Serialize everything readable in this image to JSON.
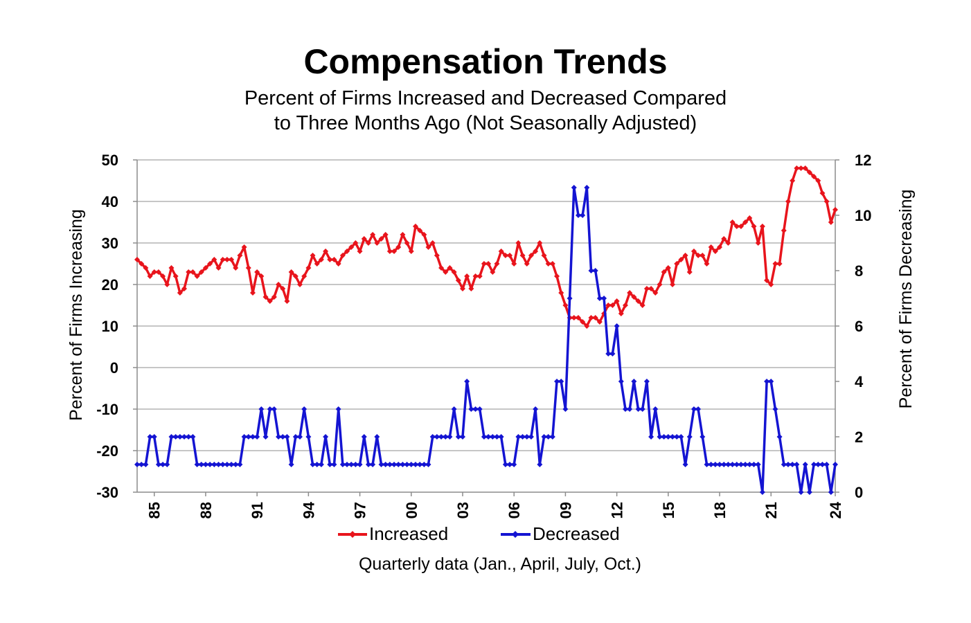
{
  "chart_data": {
    "type": "line",
    "title": "Compensation Trends",
    "subtitle_lines": [
      "Percent of Firms Increased and Decreased Compared",
      "to Three Months Ago (Not Seasonally Adjusted)"
    ],
    "xlabel": "Quarterly data (Jan., April, July, Oct.)",
    "ylabel_left": "Percent of Firms Increasing",
    "ylabel_right": "Percent of Firms Decreasing",
    "x_start": "1984 Q1",
    "x_end": "2024 Q1",
    "x_tick_labels": [
      "85",
      "88",
      "91",
      "94",
      "97",
      "00",
      "03",
      "06",
      "09",
      "12",
      "15",
      "18",
      "21",
      "24"
    ],
    "ylim_left": [
      -30,
      50
    ],
    "yticks_left": [
      50,
      40,
      30,
      20,
      10,
      0,
      -10,
      -20,
      -30
    ],
    "ylim_right": [
      0,
      12
    ],
    "yticks_right": [
      12,
      10,
      8,
      6,
      4,
      2,
      0
    ],
    "grid": true,
    "legend_position": "bottom",
    "series": [
      {
        "name": "Increased",
        "axis": "left",
        "color": "#e8141c",
        "values": [
          26,
          25,
          24,
          22,
          23,
          23,
          22,
          20,
          24,
          22,
          18,
          19,
          23,
          23,
          22,
          23,
          24,
          25,
          26,
          24,
          26,
          26,
          26,
          24,
          27,
          29,
          24,
          18,
          23,
          22,
          17,
          16,
          17,
          20,
          19,
          16,
          23,
          22,
          20,
          22,
          24,
          27,
          25,
          26,
          28,
          26,
          26,
          25,
          27,
          28,
          29,
          30,
          28,
          31,
          30,
          32,
          30,
          31,
          32,
          28,
          28,
          29,
          32,
          30,
          28,
          34,
          33,
          32,
          29,
          30,
          27,
          24,
          23,
          24,
          23,
          21,
          19,
          22,
          19,
          22,
          22,
          25,
          25,
          23,
          25,
          28,
          27,
          27,
          25,
          30,
          27,
          25,
          27,
          28,
          30,
          27,
          25,
          25,
          22,
          18,
          15,
          12,
          12,
          12,
          11,
          10,
          12,
          12,
          11,
          13,
          15,
          15,
          16,
          13,
          15,
          18,
          17,
          16,
          15,
          19,
          19,
          18,
          20,
          23,
          24,
          20,
          25,
          26,
          27,
          23,
          28,
          27,
          27,
          25,
          29,
          28,
          29,
          31,
          30,
          35,
          34,
          34,
          35,
          36,
          34,
          30,
          34,
          21,
          20,
          25,
          25,
          33,
          40,
          45,
          48,
          48,
          48,
          47,
          46,
          45,
          42,
          40,
          35,
          38
        ]
      },
      {
        "name": "Decreased",
        "axis": "right",
        "color": "#1414d2",
        "values": [
          1,
          1,
          1,
          2,
          2,
          1,
          1,
          1,
          2,
          2,
          2,
          2,
          2,
          2,
          1,
          1,
          1,
          1,
          1,
          1,
          1,
          1,
          1,
          1,
          1,
          2,
          2,
          2,
          2,
          3,
          2,
          3,
          3,
          2,
          2,
          2,
          1,
          2,
          2,
          3,
          2,
          1,
          1,
          1,
          2,
          1,
          1,
          3,
          1,
          1,
          1,
          1,
          1,
          2,
          1,
          1,
          2,
          1,
          1,
          1,
          1,
          1,
          1,
          1,
          1,
          1,
          1,
          1,
          1,
          2,
          2,
          2,
          2,
          2,
          3,
          2,
          2,
          4,
          3,
          3,
          3,
          2,
          2,
          2,
          2,
          2,
          1,
          1,
          1,
          2,
          2,
          2,
          2,
          3,
          1,
          2,
          2,
          2,
          4,
          4,
          3,
          7,
          11,
          10,
          10,
          11,
          8,
          8,
          7,
          7,
          5,
          5,
          6,
          4,
          3,
          3,
          4,
          3,
          3,
          4,
          2,
          3,
          2,
          2,
          2,
          2,
          2,
          2,
          1,
          2,
          3,
          3,
          2,
          1,
          1,
          1,
          1,
          1,
          1,
          1,
          1,
          1,
          1,
          1,
          1,
          1,
          0,
          4,
          4,
          3,
          2,
          1,
          1,
          1,
          1,
          0,
          1,
          0,
          1,
          1,
          1,
          1,
          0,
          1
        ]
      }
    ]
  }
}
